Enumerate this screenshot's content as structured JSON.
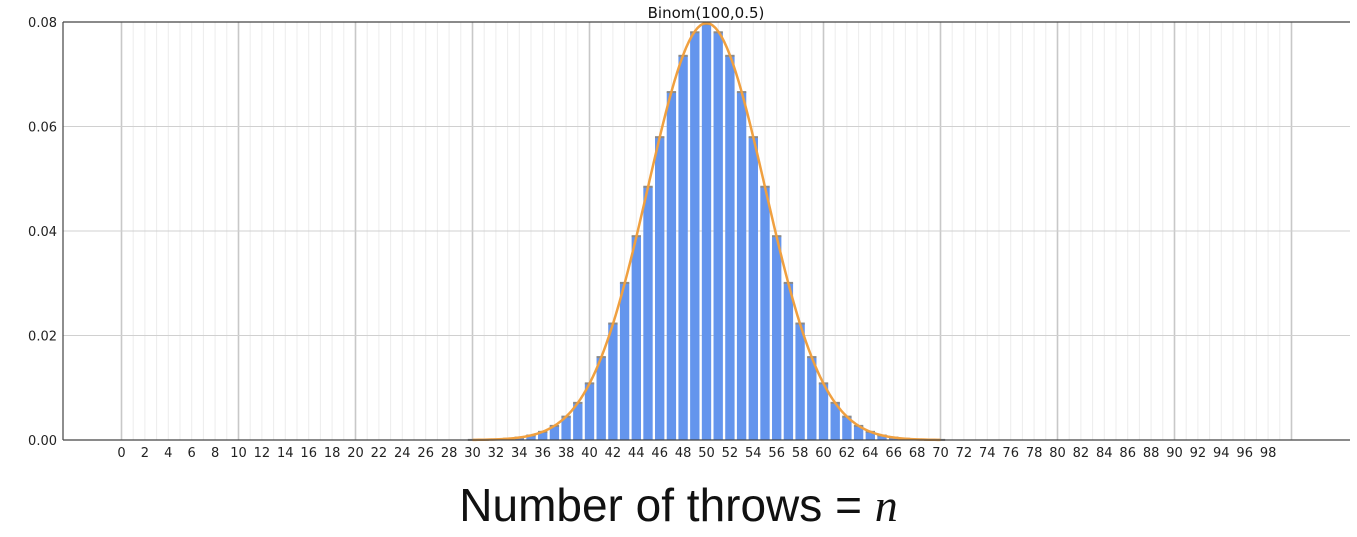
{
  "chart_data": {
    "type": "bar",
    "title": "Binom(100,0.5)",
    "xlabel": "Number of throws",
    "xlabel_relation": "=",
    "xlabel_variable": "n",
    "ylabel": "",
    "xlim": [
      -5,
      105
    ],
    "ylim": [
      0,
      0.08
    ],
    "yticks": [
      "0.00",
      "0.02",
      "0.04",
      "0.06",
      "0.08"
    ],
    "xticks": [
      0,
      2,
      4,
      6,
      8,
      10,
      12,
      14,
      16,
      18,
      20,
      22,
      24,
      26,
      28,
      30,
      32,
      34,
      36,
      38,
      40,
      42,
      44,
      46,
      48,
      50,
      52,
      54,
      56,
      58,
      60,
      62,
      64,
      66,
      68,
      70,
      72,
      74,
      76,
      78,
      80,
      82,
      84,
      86,
      88,
      90,
      92,
      94,
      96,
      98
    ],
    "grid": true,
    "x": [
      30,
      31,
      32,
      33,
      34,
      35,
      36,
      37,
      38,
      39,
      40,
      41,
      42,
      43,
      44,
      45,
      46,
      47,
      48,
      49,
      50,
      51,
      52,
      53,
      54,
      55,
      56,
      57,
      58,
      59,
      60,
      61,
      62,
      63,
      64,
      65,
      66,
      67,
      68,
      69,
      70
    ],
    "values": [
      2e-05,
      5e-05,
      0.00011,
      0.00023,
      0.00046,
      0.00086,
      0.00156,
      0.0027,
      0.00447,
      0.00711,
      0.01084,
      0.01587,
      0.02229,
      0.03007,
      0.03901,
      0.04847,
      0.05796,
      0.06659,
      0.07353,
      0.07803,
      0.07959,
      0.07803,
      0.07353,
      0.06659,
      0.05796,
      0.04847,
      0.03901,
      0.03007,
      0.02229,
      0.01587,
      0.01084,
      0.00711,
      0.00447,
      0.0027,
      0.00156,
      0.00086,
      0.00046,
      0.00023,
      0.00011,
      5e-05,
      2e-05
    ],
    "curve": {
      "type": "normal",
      "mean": 50,
      "std": 5
    },
    "colors": {
      "bar": "#6495ed",
      "bar_edge": "#8a8a8a",
      "curve": "#f0a040",
      "grid": "#d0d0d0",
      "axis": "#444444"
    }
  }
}
